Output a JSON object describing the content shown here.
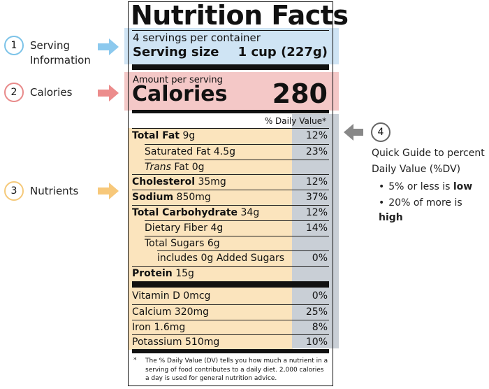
{
  "title": "Nutrition Facts",
  "servings": "4 servings per container",
  "serving_size": {
    "label": "Serving size",
    "value": "1 cup (227g)"
  },
  "calories": {
    "caption": "Amount per serving",
    "label": "Calories",
    "value": "280"
  },
  "dv_header": "% Daily Value*",
  "nutrients": [
    {
      "name": "Total Fat",
      "amount": "9g",
      "dv": "12%",
      "bold": true,
      "indent": 0
    },
    {
      "name": "Saturated Fat 4.5g",
      "dv": "23%",
      "bold": false,
      "indent": 1
    },
    {
      "name_italic": "Trans",
      "name": "Fat 0g",
      "bold": false,
      "indent": 1
    },
    {
      "name": "Cholesterol",
      "amount": "35mg",
      "dv": "12%",
      "bold": true,
      "indent": 0
    },
    {
      "name": "Sodium",
      "amount": "850mg",
      "dv": "37%",
      "bold": true,
      "indent": 0
    },
    {
      "name": "Total Carbohydrate",
      "amount": "34g",
      "dv": "12%",
      "bold": true,
      "indent": 0
    },
    {
      "name": "Dietary Fiber 4g",
      "dv": "14%",
      "bold": false,
      "indent": 1
    },
    {
      "name": "Total Sugars 6g",
      "bold": false,
      "indent": 1
    },
    {
      "name": "includes 0g Added Sugars",
      "dv": "0%",
      "bold": false,
      "indent": 2
    },
    {
      "name": "Protein",
      "amount": "15g",
      "bold": true,
      "indent": 0
    }
  ],
  "vitamins": [
    {
      "name": "Vitamin D 0mcg",
      "dv": "0%"
    },
    {
      "name": "Calcium 320mg",
      "dv": "25%"
    },
    {
      "name": "Iron 1.6mg",
      "dv": "8%"
    },
    {
      "name": "Potassium 510mg",
      "dv": "10%"
    }
  ],
  "footnote": {
    "mark": "*",
    "text": "The % Daily Value (DV) tells you how much a nutrient in a serving of food contributes to a daily diet. 2,000 calories a day is used for general nutrition advice."
  },
  "annotations": [
    {
      "number": "1",
      "label": "Serving Information"
    },
    {
      "number": "2",
      "label": "Calories"
    },
    {
      "number": "3",
      "label": "Nutrients"
    }
  ],
  "guide": {
    "number": "4",
    "line1": "Quick Guide to percent",
    "line2": "Daily Value (%DV)",
    "bullets": [
      {
        "text": "5% or less is",
        "bold": "low"
      },
      {
        "text": "20% of more is",
        "bold": "high"
      }
    ]
  }
}
